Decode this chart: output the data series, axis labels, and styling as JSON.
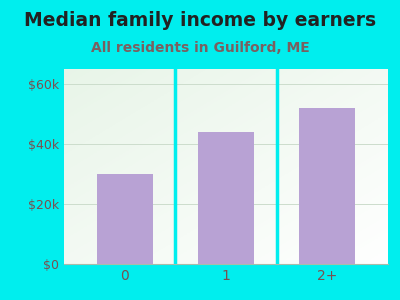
{
  "title": "Median family income by earners",
  "subtitle": "All residents in Guilford, ME",
  "categories": [
    "0",
    "1",
    "2+"
  ],
  "values": [
    30000,
    44000,
    52000
  ],
  "bar_color": "#b8a2d4",
  "title_fontsize": 13.5,
  "subtitle_fontsize": 10,
  "title_color": "#222222",
  "subtitle_color": "#7a6060",
  "tick_color": "#7a5050",
  "background_outer": "#00eeee",
  "background_inner": "#e8f5e8",
  "ylim": [
    0,
    65000
  ],
  "yticks": [
    0,
    20000,
    40000,
    60000
  ],
  "ytick_labels": [
    "$0",
    "$20k",
    "$40k",
    "$60k"
  ],
  "bar_width": 0.55,
  "separator_color": "#00eeee",
  "spine_bottom_color": "#aabbaa"
}
